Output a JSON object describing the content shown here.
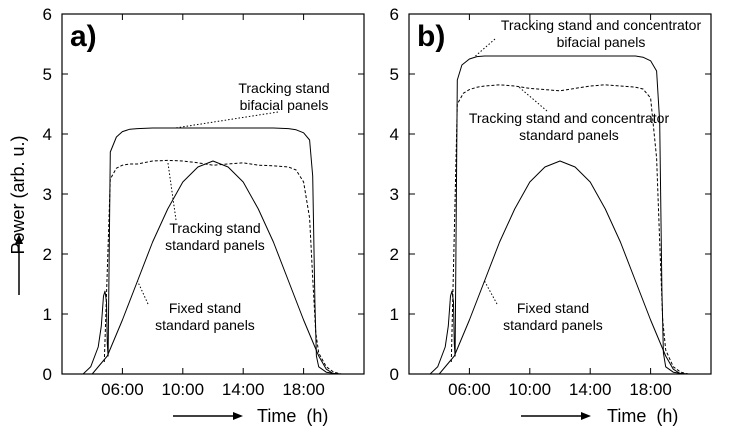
{
  "chart_data": [
    {
      "type": "line",
      "panel_label": "a)",
      "xlabel": "Time  (h)",
      "ylabel": "Power  (arb. u.)",
      "xlim": [
        2,
        22
      ],
      "ylim": [
        0,
        6
      ],
      "xticks": [
        "06:00",
        "10:00",
        "14:00",
        "18:00"
      ],
      "xtick_values": [
        6,
        10,
        14,
        18
      ],
      "yticks": [
        "0",
        "1",
        "2",
        "3",
        "4",
        "5",
        "6"
      ],
      "series": [
        {
          "line_style": "solid",
          "x": [
            3.4,
            3.9,
            4.4,
            4.6,
            4.75,
            4.85,
            4.95,
            5.0,
            5.05,
            5.2,
            5.6,
            6.0,
            6.5,
            7.0,
            8.0,
            10.0,
            12.0,
            14.0,
            16.0,
            17.0,
            17.5,
            18.0,
            18.4,
            18.6,
            18.75,
            18.85,
            19.0,
            19.5,
            20.0,
            20.5
          ],
          "y": [
            0.0,
            0.12,
            0.45,
            0.8,
            1.3,
            1.38,
            1.2,
            0.5,
            0.3,
            3.7,
            3.95,
            4.04,
            4.08,
            4.09,
            4.1,
            4.1,
            4.1,
            4.1,
            4.1,
            4.09,
            4.07,
            4.02,
            3.9,
            3.3,
            1.2,
            0.3,
            0.12,
            0.03,
            0.01,
            0.0
          ]
        },
        {
          "line_style": "dashed",
          "x": [
            4.8,
            5.2,
            5.6,
            6.0,
            6.5,
            7.0,
            8.0,
            9.0,
            10.0,
            11.0,
            12.0,
            13.0,
            14.0,
            15.0,
            16.0,
            17.0,
            17.5,
            18.0,
            18.4,
            18.6,
            18.8,
            19.0,
            19.5,
            20.0,
            20.5
          ],
          "y": [
            0.2,
            3.25,
            3.43,
            3.48,
            3.5,
            3.5,
            3.55,
            3.56,
            3.55,
            3.52,
            3.48,
            3.5,
            3.52,
            3.48,
            3.47,
            3.45,
            3.4,
            3.2,
            2.6,
            1.6,
            0.7,
            0.35,
            0.12,
            0.03,
            0.0
          ]
        },
        {
          "line_style": "solid",
          "x": [
            4.0,
            5.0,
            6.0,
            7.0,
            8.0,
            9.0,
            10.0,
            11.0,
            12.0,
            13.0,
            14.0,
            15.0,
            16.0,
            17.0,
            18.0,
            19.0,
            19.5,
            20.0
          ],
          "y": [
            0.0,
            0.3,
            0.9,
            1.55,
            2.2,
            2.75,
            3.2,
            3.45,
            3.55,
            3.45,
            3.2,
            2.75,
            2.2,
            1.55,
            0.9,
            0.3,
            0.08,
            0.0
          ]
        }
      ],
      "annotations": [
        {
          "lines": [
            "Tracking stand",
            "bifacial panels"
          ],
          "point_to": [
            9.5,
            4.1
          ]
        },
        {
          "lines": [
            "Tracking stand",
            "standard panels"
          ],
          "point_to": [
            9.0,
            3.55
          ]
        },
        {
          "lines": [
            "Fixed stand",
            "standard panels"
          ],
          "point_to": [
            7.0,
            1.55
          ]
        }
      ]
    },
    {
      "type": "line",
      "panel_label": "b)",
      "xlabel": "Time  (h)",
      "ylabel": "",
      "xlim": [
        2,
        22
      ],
      "ylim": [
        0,
        6
      ],
      "xticks": [
        "06:00",
        "10:00",
        "14:00",
        "18:00"
      ],
      "xtick_values": [
        6,
        10,
        14,
        18
      ],
      "yticks": [
        "0",
        "1",
        "2",
        "3",
        "4",
        "5",
        "6"
      ],
      "series": [
        {
          "line_style": "solid",
          "x": [
            3.4,
            3.9,
            4.4,
            4.6,
            4.75,
            4.85,
            4.95,
            5.0,
            5.05,
            5.2,
            5.5,
            6.0,
            6.5,
            7.0,
            8.0,
            10.0,
            12.0,
            14.0,
            16.0,
            17.0,
            17.5,
            18.0,
            18.4,
            18.6,
            18.75,
            18.85,
            19.0,
            19.5,
            20.0,
            20.5
          ],
          "y": [
            0.0,
            0.12,
            0.45,
            0.8,
            1.3,
            1.38,
            1.2,
            0.5,
            0.3,
            4.9,
            5.15,
            5.25,
            5.29,
            5.3,
            5.3,
            5.3,
            5.3,
            5.3,
            5.3,
            5.3,
            5.28,
            5.22,
            5.05,
            4.2,
            1.4,
            0.35,
            0.12,
            0.03,
            0.01,
            0.0
          ]
        },
        {
          "line_style": "dashed",
          "x": [
            4.8,
            5.2,
            5.6,
            6.0,
            6.5,
            7.0,
            8.0,
            9.0,
            10.0,
            11.0,
            12.0,
            13.0,
            14.0,
            15.0,
            16.0,
            17.0,
            17.5,
            18.0,
            18.4,
            18.6,
            18.8,
            19.0,
            19.5,
            20.0,
            20.5
          ],
          "y": [
            0.2,
            4.5,
            4.68,
            4.74,
            4.78,
            4.8,
            4.82,
            4.8,
            4.76,
            4.74,
            4.72,
            4.76,
            4.8,
            4.82,
            4.8,
            4.78,
            4.75,
            4.6,
            3.6,
            2.2,
            0.9,
            0.4,
            0.12,
            0.03,
            0.0
          ]
        },
        {
          "line_style": "solid",
          "x": [
            4.0,
            5.0,
            6.0,
            7.0,
            8.0,
            9.0,
            10.0,
            11.0,
            12.0,
            13.0,
            14.0,
            15.0,
            16.0,
            17.0,
            18.0,
            19.0,
            19.5,
            20.0
          ],
          "y": [
            0.0,
            0.3,
            0.9,
            1.55,
            2.2,
            2.75,
            3.2,
            3.45,
            3.55,
            3.45,
            3.2,
            2.75,
            2.2,
            1.55,
            0.9,
            0.3,
            0.08,
            0.0
          ]
        }
      ],
      "annotations": [
        {
          "lines": [
            "Tracking stand and concentrator",
            "bifacial panels"
          ],
          "point_to": [
            6.4,
            5.3
          ]
        },
        {
          "lines": [
            "Tracking stand and concentrator",
            "standard panels"
          ],
          "point_to": [
            9.2,
            4.8
          ]
        },
        {
          "lines": [
            "Fixed stand",
            "standard panels"
          ],
          "point_to": [
            7.0,
            1.55
          ]
        }
      ]
    }
  ]
}
